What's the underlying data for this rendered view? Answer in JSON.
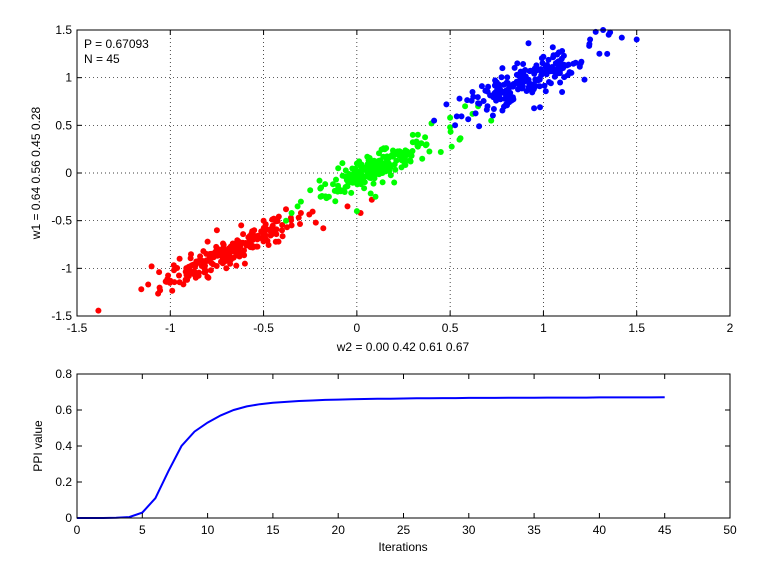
{
  "chart_data": [
    {
      "type": "scatter",
      "annotations": [
        "P = 0.67093",
        "N = 45"
      ],
      "xlabel": "w2 = 0.00  0.42  0.61  0.67",
      "ylabel": "w1 = 0.64  0.56  0.45  0.28",
      "xlim": [
        -1.5,
        2
      ],
      "ylim": [
        -1.5,
        1.5
      ],
      "xticks": [
        -1.5,
        -1,
        -0.5,
        0,
        0.5,
        1,
        1.5,
        2
      ],
      "yticks": [
        -1.5,
        -1,
        -0.5,
        0,
        0.5,
        1,
        1.5
      ],
      "xticklabels": [
        "-1.5",
        "-1",
        "-0.5",
        "0",
        "0.5",
        "1",
        "1.5",
        "2"
      ],
      "yticklabels": [
        "-1.5",
        "-1",
        "-0.5",
        "0",
        "0.5",
        "1",
        "1.5"
      ],
      "grid": true,
      "series": [
        {
          "color": "#ff0000",
          "center": [
            -0.68,
            -0.82
          ],
          "spread_along": 0.27,
          "spread_across": 0.05,
          "points": [
            [
              -1.1,
              -0.98
            ],
            [
              -1.06,
              -1.04
            ],
            [
              -1.0,
              -1.13
            ],
            [
              -0.98,
              -1.02
            ],
            [
              -0.95,
              -0.9
            ],
            [
              -0.9,
              -1.08
            ],
            [
              -0.86,
              -0.95
            ],
            [
              -0.8,
              -0.72
            ],
            [
              -0.75,
              -0.6
            ],
            [
              -0.62,
              -0.55
            ],
            [
              -0.55,
              -0.6
            ],
            [
              -0.5,
              -0.5
            ],
            [
              -0.45,
              -0.62
            ],
            [
              -0.42,
              -0.72
            ],
            [
              -0.35,
              -0.55
            ],
            [
              -0.3,
              -0.42
            ],
            [
              -0.22,
              -0.52
            ],
            [
              -0.18,
              -0.58
            ],
            [
              -0.38,
              -0.38
            ],
            [
              -0.6,
              -0.95
            ],
            [
              -0.7,
              -1.0
            ],
            [
              -0.05,
              -0.35
            ],
            [
              0.02,
              -0.42
            ],
            [
              0.08,
              -0.28
            ]
          ]
        },
        {
          "color": "#00ff00",
          "center": [
            0.1,
            0.05
          ],
          "spread_along": 0.2,
          "spread_across": 0.05,
          "points": [
            [
              -0.35,
              -0.42
            ],
            [
              -0.3,
              -0.3
            ],
            [
              -0.25,
              -0.18
            ],
            [
              -0.2,
              -0.08
            ],
            [
              -0.15,
              -0.25
            ],
            [
              -0.1,
              0.05
            ],
            [
              0.0,
              0.1
            ],
            [
              0.15,
              0.25
            ],
            [
              0.3,
              0.4
            ],
            [
              0.4,
              0.52
            ],
            [
              0.5,
              0.48
            ],
            [
              0.55,
              0.35
            ],
            [
              0.58,
              0.7
            ],
            [
              0.62,
              0.62
            ],
            [
              0.65,
              0.7
            ],
            [
              0.72,
              0.55
            ],
            [
              0.45,
              0.22
            ],
            [
              0.0,
              -0.4
            ],
            [
              0.1,
              -0.25
            ],
            [
              0.2,
              -0.1
            ],
            [
              -0.38,
              -0.5
            ],
            [
              0.35,
              0.15
            ],
            [
              0.5,
              0.58
            ]
          ]
        },
        {
          "color": "#0000ff",
          "center": [
            0.9,
            0.95
          ],
          "spread_along": 0.22,
          "spread_across": 0.06,
          "points": [
            [
              0.48,
              0.72
            ],
            [
              0.55,
              0.78
            ],
            [
              0.62,
              0.85
            ],
            [
              0.7,
              0.7
            ],
            [
              0.75,
              0.95
            ],
            [
              0.8,
              0.72
            ],
            [
              0.86,
              1.15
            ],
            [
              0.92,
              1.36
            ],
            [
              1.0,
              1.22
            ],
            [
              1.05,
              1.32
            ],
            [
              1.1,
              1.28
            ],
            [
              1.15,
              1.05
            ],
            [
              1.2,
              1.15
            ],
            [
              1.25,
              1.4
            ],
            [
              1.28,
              1.48
            ],
            [
              1.32,
              1.5
            ],
            [
              1.35,
              1.45
            ],
            [
              1.42,
              1.42
            ],
            [
              1.5,
              1.4
            ],
            [
              1.22,
              0.98
            ],
            [
              1.1,
              0.85
            ],
            [
              0.95,
              0.68
            ],
            [
              0.78,
              1.1
            ],
            [
              1.3,
              1.25
            ]
          ]
        }
      ]
    },
    {
      "type": "line",
      "xlabel": "Iterations",
      "ylabel": "PPI value",
      "xlim": [
        0,
        50
      ],
      "ylim": [
        0,
        0.8
      ],
      "xticks": [
        0,
        5,
        10,
        15,
        20,
        25,
        30,
        35,
        40,
        45,
        50
      ],
      "yticks": [
        0,
        0.2,
        0.4,
        0.6,
        0.8
      ],
      "xticklabels": [
        "0",
        "5",
        "10",
        "15",
        "20",
        "25",
        "30",
        "35",
        "40",
        "45",
        "50"
      ],
      "yticklabels": [
        "0",
        "0.2",
        "0.4",
        "0.6",
        "0.8"
      ],
      "grid": false,
      "series": [
        {
          "color": "#0000ff",
          "x": [
            0,
            1,
            2,
            3,
            4,
            5,
            6,
            7,
            8,
            9,
            10,
            11,
            12,
            13,
            14,
            15,
            16,
            17,
            18,
            19,
            20,
            21,
            22,
            23,
            24,
            25,
            26,
            27,
            28,
            29,
            30,
            31,
            32,
            33,
            34,
            35,
            36,
            37,
            38,
            39,
            40,
            41,
            42,
            43,
            44,
            45
          ],
          "y": [
            0.0,
            0.0,
            0.0,
            0.001,
            0.005,
            0.03,
            0.11,
            0.26,
            0.4,
            0.48,
            0.53,
            0.57,
            0.6,
            0.62,
            0.632,
            0.64,
            0.645,
            0.65,
            0.653,
            0.656,
            0.658,
            0.66,
            0.661,
            0.662,
            0.663,
            0.664,
            0.665,
            0.665,
            0.666,
            0.666,
            0.667,
            0.667,
            0.667,
            0.668,
            0.668,
            0.668,
            0.669,
            0.669,
            0.669,
            0.669,
            0.67,
            0.67,
            0.67,
            0.67,
            0.67,
            0.671
          ]
        }
      ]
    }
  ]
}
